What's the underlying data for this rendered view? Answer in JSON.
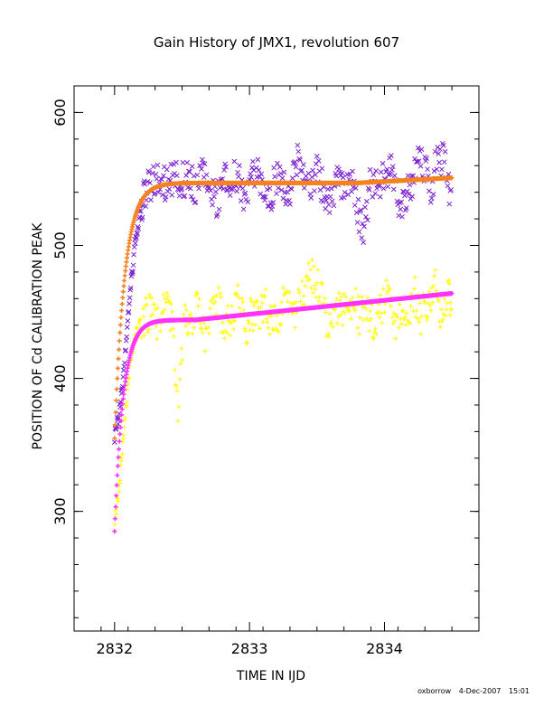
{
  "chart_data": {
    "type": "scatter",
    "title": "Gain History of JMX1, revolution 607",
    "xlabel": "TIME IN IJD",
    "ylabel": "POSITION OF Cd CALIBRATION PEAK",
    "xlim": [
      2831.7,
      2834.7
    ],
    "ylim": [
      210,
      620
    ],
    "xticks": [
      2832,
      2833,
      2834
    ],
    "yticks": [
      300,
      400,
      500,
      600
    ],
    "grid": false,
    "series": [
      {
        "marker": "x",
        "color": "#7a1fd0",
        "description_points": [
          [
            2832.0,
            357
          ],
          [
            2832.03,
            372
          ],
          [
            2832.06,
            395
          ],
          [
            2832.09,
            430
          ],
          [
            2832.12,
            470
          ],
          [
            2832.15,
            500
          ],
          [
            2832.18,
            520
          ],
          [
            2832.21,
            535
          ],
          [
            2832.25,
            545
          ],
          [
            2832.3,
            548
          ],
          [
            2832.35,
            550
          ],
          [
            2832.4,
            545
          ],
          [
            2832.45,
            555
          ],
          [
            2832.5,
            548
          ],
          [
            2832.55,
            552
          ],
          [
            2832.6,
            540
          ],
          [
            2832.65,
            556
          ],
          [
            2832.7,
            548
          ],
          [
            2832.75,
            530
          ],
          [
            2832.8,
            550
          ],
          [
            2832.85,
            545
          ],
          [
            2832.9,
            555
          ],
          [
            2832.95,
            540
          ],
          [
            2833.0,
            548
          ],
          [
            2833.05,
            560
          ],
          [
            2833.1,
            545
          ],
          [
            2833.15,
            535
          ],
          [
            2833.2,
            552
          ],
          [
            2833.25,
            548
          ],
          [
            2833.3,
            540
          ],
          [
            2833.35,
            565
          ],
          [
            2833.4,
            555
          ],
          [
            2833.45,
            545
          ],
          [
            2833.5,
            560
          ],
          [
            2833.55,
            540
          ],
          [
            2833.6,
            530
          ],
          [
            2833.65,
            550
          ],
          [
            2833.7,
            545
          ],
          [
            2833.75,
            555
          ],
          [
            2833.8,
            525
          ],
          [
            2833.85,
            510
          ],
          [
            2833.9,
            548
          ],
          [
            2833.95,
            545
          ],
          [
            2834.0,
            550
          ],
          [
            2834.05,
            556
          ],
          [
            2834.1,
            535
          ],
          [
            2834.15,
            530
          ],
          [
            2834.2,
            548
          ],
          [
            2834.25,
            562
          ],
          [
            2834.3,
            555
          ],
          [
            2834.35,
            545
          ],
          [
            2834.4,
            570
          ],
          [
            2834.45,
            560
          ],
          [
            2834.5,
            535
          ]
        ]
      },
      {
        "marker": "+",
        "color": "#ffff00",
        "description_points": [
          [
            2832.0,
            295
          ],
          [
            2832.03,
            315
          ],
          [
            2832.06,
            350
          ],
          [
            2832.09,
            385
          ],
          [
            2832.12,
            415
          ],
          [
            2832.15,
            430
          ],
          [
            2832.18,
            440
          ],
          [
            2832.22,
            445
          ],
          [
            2832.27,
            452
          ],
          [
            2832.32,
            440
          ],
          [
            2832.37,
            455
          ],
          [
            2832.42,
            445
          ],
          [
            2832.47,
            380
          ],
          [
            2832.52,
            450
          ],
          [
            2832.57,
            440
          ],
          [
            2832.62,
            460
          ],
          [
            2832.67,
            430
          ],
          [
            2832.72,
            448
          ],
          [
            2832.77,
            455
          ],
          [
            2832.82,
            440
          ],
          [
            2832.87,
            445
          ],
          [
            2832.92,
            460
          ],
          [
            2832.97,
            435
          ],
          [
            2833.02,
            450
          ],
          [
            2833.07,
            445
          ],
          [
            2833.12,
            455
          ],
          [
            2833.17,
            440
          ],
          [
            2833.22,
            448
          ],
          [
            2833.27,
            460
          ],
          [
            2833.32,
            445
          ],
          [
            2833.37,
            455
          ],
          [
            2833.42,
            470
          ],
          [
            2833.47,
            478
          ],
          [
            2833.52,
            465
          ],
          [
            2833.57,
            445
          ],
          [
            2833.62,
            440
          ],
          [
            2833.67,
            455
          ],
          [
            2833.72,
            448
          ],
          [
            2833.77,
            462
          ],
          [
            2833.82,
            445
          ],
          [
            2833.87,
            455
          ],
          [
            2833.92,
            440
          ],
          [
            2833.97,
            450
          ],
          [
            2834.02,
            465
          ],
          [
            2834.07,
            440
          ],
          [
            2834.12,
            455
          ],
          [
            2834.17,
            448
          ],
          [
            2834.22,
            465
          ],
          [
            2834.27,
            445
          ],
          [
            2834.32,
            458
          ],
          [
            2834.37,
            470
          ],
          [
            2834.42,
            450
          ],
          [
            2834.47,
            462
          ],
          [
            2834.5,
            455
          ]
        ]
      }
    ],
    "fits": [
      {
        "color": "#f58220",
        "marker": "+",
        "y_start": 355,
        "y_plateau": 547,
        "tau": 0.075,
        "slope": 5.5,
        "slope_start": 2833.8
      },
      {
        "color": "#ff33ff",
        "marker": "+",
        "y_start": 285,
        "y_plateau": 444,
        "tau": 0.065,
        "slope": 10.5,
        "slope_start": 2832.6
      }
    ]
  },
  "footer": {
    "user": "oxborrow",
    "date": "4-Dec-2007",
    "time": "15:01"
  }
}
